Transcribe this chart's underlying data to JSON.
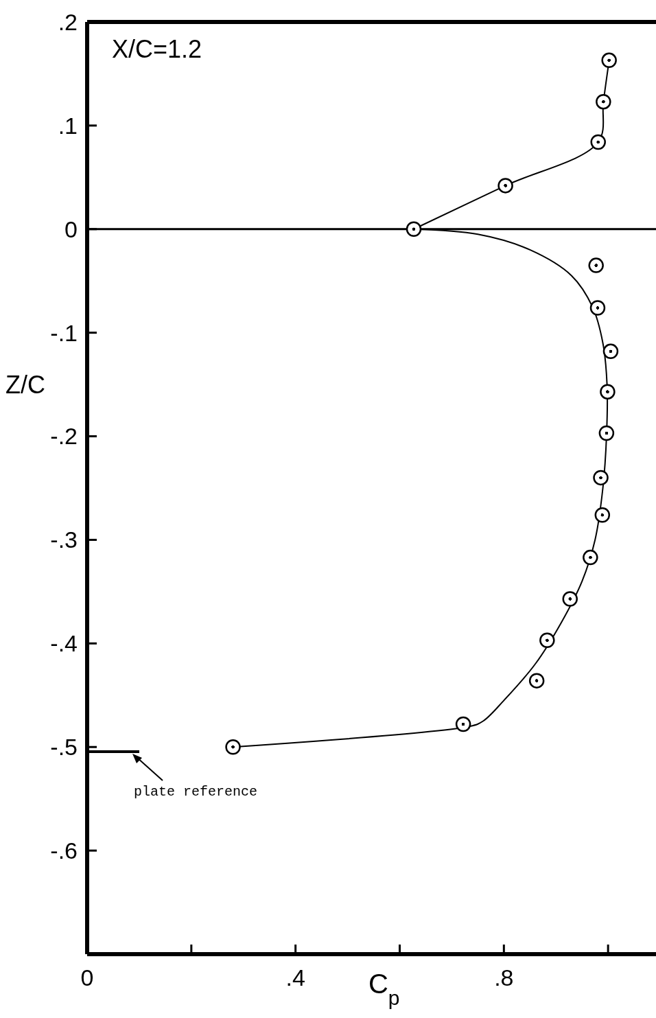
{
  "chart_data": {
    "type": "scatter",
    "xlabel": "C$_{p}$",
    "ylabel": "Z/C",
    "annotations": [
      "X/C=1.2",
      "plate reference"
    ],
    "xlim": [
      0,
      1.092
    ],
    "ylim": [
      -0.7,
      0.2
    ],
    "xticks": [
      {
        "value": 0,
        "label": "0"
      },
      {
        "value": 0.2,
        "label": null
      },
      {
        "value": 0.4,
        "label": ".4"
      },
      {
        "value": 0.6,
        "label": null
      },
      {
        "value": 0.8,
        "label": ".8"
      },
      {
        "value": 1.0,
        "label": null
      }
    ],
    "yticks": [
      {
        "value": 0.2,
        "label": ".2"
      },
      {
        "value": 0.1,
        "label": ".1"
      },
      {
        "value": 0,
        "label": "0"
      },
      {
        "value": -0.1,
        "label": "-.1"
      },
      {
        "value": -0.2,
        "label": "-.2"
      },
      {
        "value": -0.3,
        "label": "-.3"
      },
      {
        "value": -0.4,
        "label": "-.4"
      },
      {
        "value": -0.5,
        "label": "-.5"
      },
      {
        "value": -0.6,
        "label": "-.6"
      },
      {
        "value": -0.7,
        "label": null
      }
    ],
    "ref_lines": [
      {
        "axis": "y",
        "value": 0,
        "color": "#000000"
      }
    ],
    "grid": false,
    "marker": "circle",
    "series": [
      {
        "color": "#000000",
        "x": [
          1.002,
          0.991,
          0.981,
          0.803,
          0.627,
          0.977,
          0.98,
          1.005,
          0.999,
          0.997,
          0.986,
          0.989,
          0.966,
          0.927,
          0.883,
          0.863,
          0.722,
          0.28
        ],
        "values": [
          0.163,
          0.123,
          0.084,
          0.042,
          0.0,
          -0.035,
          -0.076,
          -0.118,
          -0.157,
          -0.197,
          -0.24,
          -0.276,
          -0.317,
          -0.357,
          -0.397,
          -0.436,
          -0.478,
          -0.5
        ]
      },
      {
        "type": "line",
        "color": "#000000",
        "marker": "none",
        "x": [
          0.627,
          0.803,
          0.981,
          0.991,
          1.002
        ],
        "values": [
          0.0,
          0.042,
          0.084,
          0.123,
          0.163
        ]
      },
      {
        "type": "line",
        "color": "#000000",
        "marker": "none",
        "x": [
          0.627,
          0.75,
          0.85,
          0.93,
          0.97,
          0.99,
          0.998,
          0.997,
          0.99,
          0.975,
          0.95,
          0.91,
          0.86,
          0.8,
          0.76,
          0.735,
          0.28
        ],
        "values": [
          0.0,
          -0.005,
          -0.02,
          -0.045,
          -0.075,
          -0.11,
          -0.15,
          -0.2,
          -0.25,
          -0.3,
          -0.34,
          -0.38,
          -0.42,
          -0.455,
          -0.475,
          -0.48,
          -0.5
        ]
      }
    ]
  }
}
